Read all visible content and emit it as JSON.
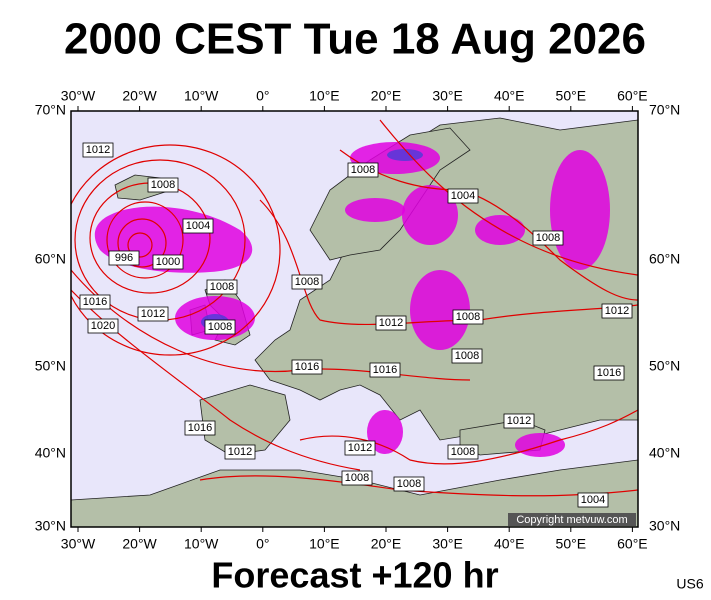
{
  "header": {
    "title": "2000 CEST Tue 18 Aug 2026"
  },
  "map": {
    "lon_labels": [
      "30°W",
      "20°W",
      "10°W",
      "0°",
      "10°E",
      "20°E",
      "30°E",
      "40°E",
      "50°E",
      "60°E"
    ],
    "lat_labels": [
      "70°N",
      "60°N",
      "50°N",
      "40°N",
      "30°N"
    ],
    "isobar_labels": [
      "1012",
      "1008",
      "1004",
      "1000",
      "996",
      "1008",
      "1012",
      "1008",
      "1016",
      "1020",
      "1008",
      "1004",
      "1008",
      "1008",
      "1012",
      "1008",
      "1008",
      "1012",
      "1016",
      "1016",
      "1016",
      "1016",
      "1012",
      "1012",
      "1012",
      "1008",
      "1008",
      "1008",
      "1004"
    ],
    "copyright": "Copyright metvuw.com"
  },
  "footer": {
    "forecast": "Forecast +120 hr",
    "code": "US6"
  }
}
